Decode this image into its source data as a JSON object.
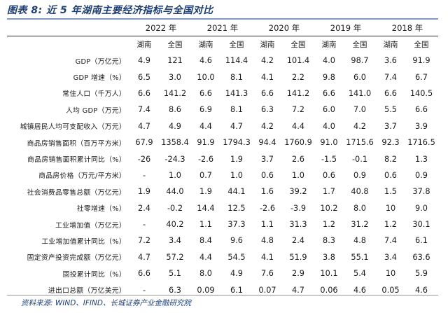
{
  "title": "图表 8:  近 5 年湖南主要经济指标与全国对比",
  "years": [
    "2022 年",
    "2021 年",
    "2020 年",
    "2019 年",
    "2018 年"
  ],
  "regions": [
    "湖南",
    "全国"
  ],
  "rows": [
    {
      "label": "GDP（万亿元）",
      "values": [
        "4.9",
        "121",
        "4.6",
        "114.4",
        "4.2",
        "101.4",
        "4.0",
        "98.7",
        "3.6",
        "91.9"
      ]
    },
    {
      "label": "GDP 增速（%）",
      "values": [
        "6.5",
        "3.0",
        "10.0",
        "8.1",
        "4.1",
        "2.2",
        "9.8",
        "6.0",
        "7.4",
        "6.7"
      ]
    },
    {
      "label": "常住人口（千万人）",
      "values": [
        "6.6",
        "141.2",
        "6.6",
        "141.3",
        "6.6",
        "141.2",
        "6.6",
        "141.0",
        "6.6",
        "140.5"
      ]
    },
    {
      "label": "人均 GDP（万元）",
      "values": [
        "7.4",
        "8.6",
        "6.9",
        "8.1",
        "6.3",
        "7.2",
        "6.0",
        "7.0",
        "5.5",
        "6.6"
      ]
    },
    {
      "label": "城镇居民人均可支配收入（万元）",
      "values": [
        "4.7",
        "4.9",
        "4.4",
        "4.7",
        "4.2",
        "4.4",
        "4.0",
        "4.2",
        "3.7",
        "3.9"
      ]
    },
    {
      "label": "商品房销售面积（百万平方米）",
      "values": [
        "67.9",
        "1358.4",
        "91.9",
        "1794.3",
        "94.4",
        "1760.9",
        "91.0",
        "1715.6",
        "92.3",
        "1716.5"
      ]
    },
    {
      "label": "商品房销售面积累计同比（%）",
      "values": [
        "-26",
        "-24.3",
        "-2.6",
        "1.9",
        "3.7",
        "2.6",
        "-1.5",
        "-0.1",
        "8.2",
        "1.3"
      ]
    },
    {
      "label": "商品房价格（万元/平方米）",
      "values": [
        "-",
        "1.0",
        "0.7",
        "1.0",
        "0.6",
        "1.0",
        "0.6",
        "0.9",
        "0.6",
        "0.9"
      ]
    },
    {
      "label": "社会消费品零售总额（万亿元）",
      "values": [
        "1.9",
        "44.0",
        "1.9",
        "44.1",
        "1.6",
        "39.2",
        "1.7",
        "40.8",
        "1.5",
        "37.8"
      ]
    },
    {
      "label": "社零增速（%）",
      "values": [
        "2.4",
        "-0.2",
        "14.4",
        "12.5",
        "-2.6",
        "-3.9",
        "10.2",
        "8.0",
        "10",
        "9.0"
      ]
    },
    {
      "label": "工业增加值（万亿元）",
      "values": [
        "-",
        "40.2",
        "1.1",
        "37.3",
        "1.1",
        "31.3",
        "1.2",
        "31.2",
        "1.2",
        "30.1"
      ]
    },
    {
      "label": "工业增加值累计同比（%）",
      "values": [
        "7.2",
        "3.4",
        "8.4",
        "9.6",
        "4.8",
        "2.4",
        "8.3",
        "4.8",
        "7.4",
        "6.1"
      ]
    },
    {
      "label": "固定资产投资完成额（万亿元）",
      "values": [
        "4.7",
        "57.2",
        "4.4",
        "54.5",
        "4.1",
        "51.9",
        "3.8",
        "55.1",
        "3.4",
        "63.6"
      ]
    },
    {
      "label": "固投累计同比（%）",
      "values": [
        "6.6",
        "5.1",
        "8.0",
        "4.9",
        "7.6",
        "2.9",
        "10.1",
        "5.4",
        "10",
        "5.9"
      ]
    },
    {
      "label": "进出口总额（万亿美元）",
      "values": [
        "-",
        "6.3",
        "0.09",
        "6.1",
        "0.07",
        "4.7",
        "0.06",
        "4.6",
        "0.05",
        "4.6"
      ]
    }
  ],
  "source": "资料来源: WIND、IFIND、长城证券产业金融研究院"
}
